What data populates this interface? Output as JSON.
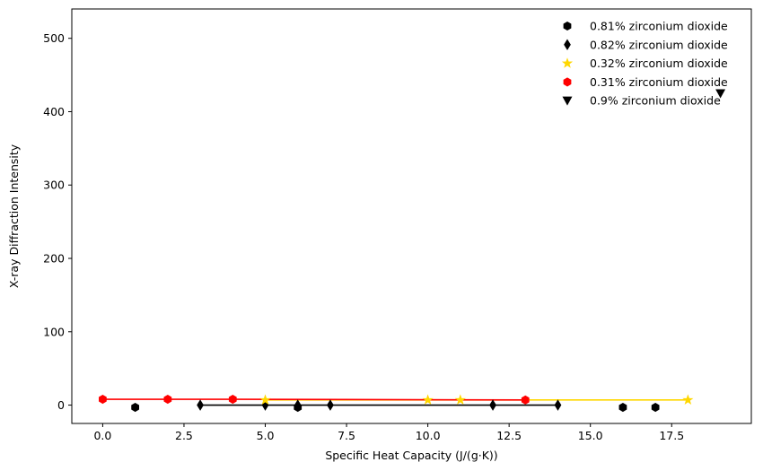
{
  "chart_data": {
    "type": "scatter",
    "title": "",
    "xlabel": "Specific Heat Capacity (J/(g·K))",
    "ylabel": "X-ray Diffraction Intensity",
    "xlim": [
      -0.95,
      19.95
    ],
    "ylim": [
      -25,
      540
    ],
    "x_ticks": [
      0.0,
      2.5,
      5.0,
      7.5,
      10.0,
      12.5,
      15.0,
      17.5
    ],
    "x_tick_labels": [
      "0.0",
      "2.5",
      "5.0",
      "7.5",
      "10.0",
      "12.5",
      "15.0",
      "17.5"
    ],
    "y_ticks": [
      0,
      100,
      200,
      300,
      400,
      500
    ],
    "y_tick_labels": [
      "0",
      "100",
      "200",
      "300",
      "400",
      "500"
    ],
    "grid": false,
    "legend_position": "top-right",
    "series": [
      {
        "name": "0.81% zirconium dioxide",
        "marker": "hexagon",
        "color": "#000000",
        "line": false,
        "x": [
          1,
          6,
          16,
          17
        ],
        "y": [
          -3,
          -3,
          -3,
          -3
        ]
      },
      {
        "name": "0.82% zirconium dioxide",
        "marker": "thin-diamond",
        "color": "#000000",
        "line": true,
        "line_color": "#000000",
        "x": [
          3,
          5,
          6,
          7,
          12,
          14
        ],
        "y": [
          0,
          0,
          0,
          0,
          0,
          0
        ]
      },
      {
        "name": "0.32% zirconium dioxide",
        "marker": "star",
        "color": "#FFD700",
        "line": true,
        "line_color": "#FFD700",
        "x": [
          5,
          10,
          11,
          18
        ],
        "y": [
          7,
          7,
          7,
          7
        ]
      },
      {
        "name": "0.31% zirconium dioxide",
        "marker": "hexagon",
        "color": "#FF0000",
        "line": true,
        "line_color": "#FF0000",
        "x": [
          0,
          2,
          4,
          13
        ],
        "y": [
          8,
          8,
          8,
          7
        ]
      },
      {
        "name": "0.9% zirconium dioxide",
        "marker": "triangle-down",
        "color": "#000000",
        "line": false,
        "x": [
          19
        ],
        "y": [
          425
        ]
      }
    ]
  }
}
